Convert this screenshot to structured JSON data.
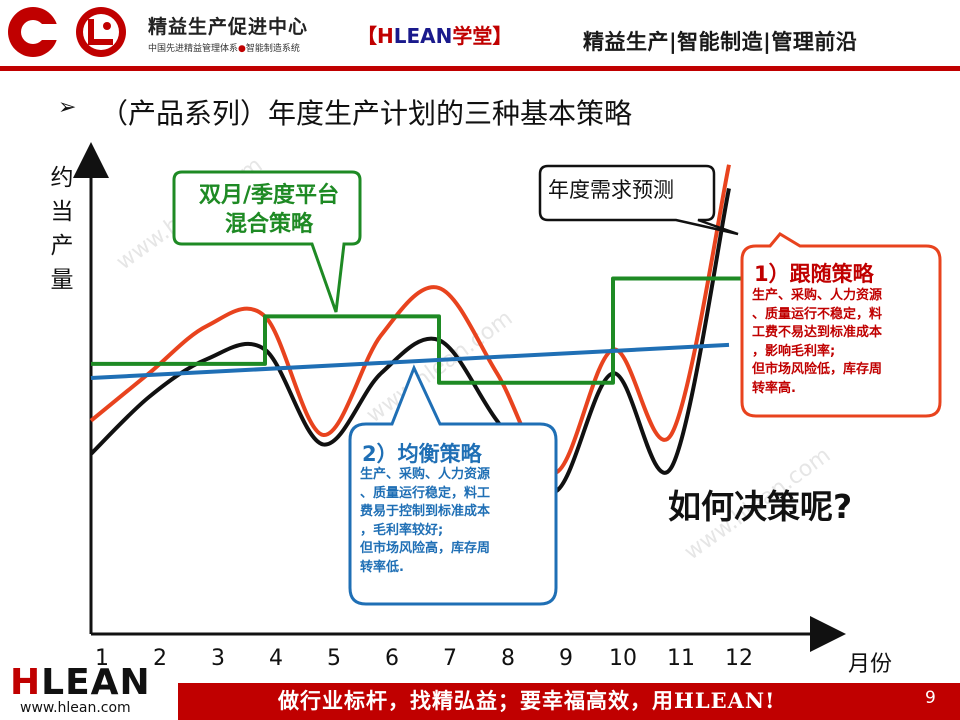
{
  "header": {
    "org_name": "精益生产促进中心",
    "org_tagline": "中国先进精益管理体系",
    "org_tagline_sep": "●",
    "org_tagline_2": "智能制造系统",
    "tag_open": "【",
    "tag_h": "H",
    "tag_lean": "LEAN",
    "tag_school": "学堂",
    "tag_close": "】",
    "slogan": "精益生产|智能制造|管理前沿"
  },
  "slide": {
    "bullet": "➢",
    "title": "（产品系列）年度生产计划的三种基本策略"
  },
  "watermark": "www.hlean.com",
  "chart_data": {
    "type": "line",
    "ylabel": "约当产量",
    "xlabel": "月份",
    "categories": [
      "1",
      "2",
      "3",
      "4",
      "5",
      "6",
      "7",
      "8",
      "9",
      "10",
      "11",
      "12"
    ],
    "series": [
      {
        "name": "年度需求预测",
        "color": "#111111",
        "values": [
          38,
          50,
          58,
          60,
          40,
          55,
          62,
          45,
          30,
          55,
          35,
          94
        ]
      },
      {
        "name": "1）跟随策略",
        "color": "#e8431e",
        "values": [
          45,
          55,
          65,
          67,
          42,
          63,
          73,
          55,
          34,
          60,
          42,
          99
        ]
      },
      {
        "name": "双月/季度平台混合策略",
        "color": "#1e8a24",
        "values": [
          57,
          57,
          57,
          67,
          67,
          67,
          53,
          53,
          53,
          75,
          75,
          75
        ]
      },
      {
        "name": "2）均衡策略",
        "color": "#1f6fb5",
        "values": [
          54,
          55,
          56,
          56,
          57,
          58,
          58,
          59,
          59,
          60,
          60,
          61
        ]
      }
    ],
    "ylim": [
      0,
      100
    ],
    "grid": false
  },
  "callouts": {
    "mixed": {
      "title_line1": "双月/季度平台",
      "title_line2": "混合策略",
      "color": "#1e8a24"
    },
    "demand": {
      "label": "年度需求预测"
    },
    "chase": {
      "title": "1）跟随策略",
      "lines": [
        "生产、采购、人力资源",
        "、质量运行不稳定，料",
        "工费不易达到标准成本",
        "，影响毛利率;",
        "但市场风险低，库存周",
        "转率高."
      ],
      "color": "#c00000"
    },
    "level": {
      "title": "2）均衡策略",
      "lines": [
        "生产、采购、人力资源",
        "、质量运行稳定，料工",
        "费易于控制到标准成本",
        "，毛利率较好;",
        "但市场风险高，库存周",
        "转率低."
      ],
      "color": "#1f6fb5"
    }
  },
  "question": "如何决策呢?",
  "footer": {
    "logo_h": "H",
    "logo_rest": "LEAN",
    "url": "www.hlean.com",
    "slogan": "做行业标杆，找精弘益；要幸福高效，用HLEAN!",
    "page_number": "9"
  },
  "colors": {
    "brand_red": "#c00000",
    "brand_navy": "#1a1a8c"
  }
}
